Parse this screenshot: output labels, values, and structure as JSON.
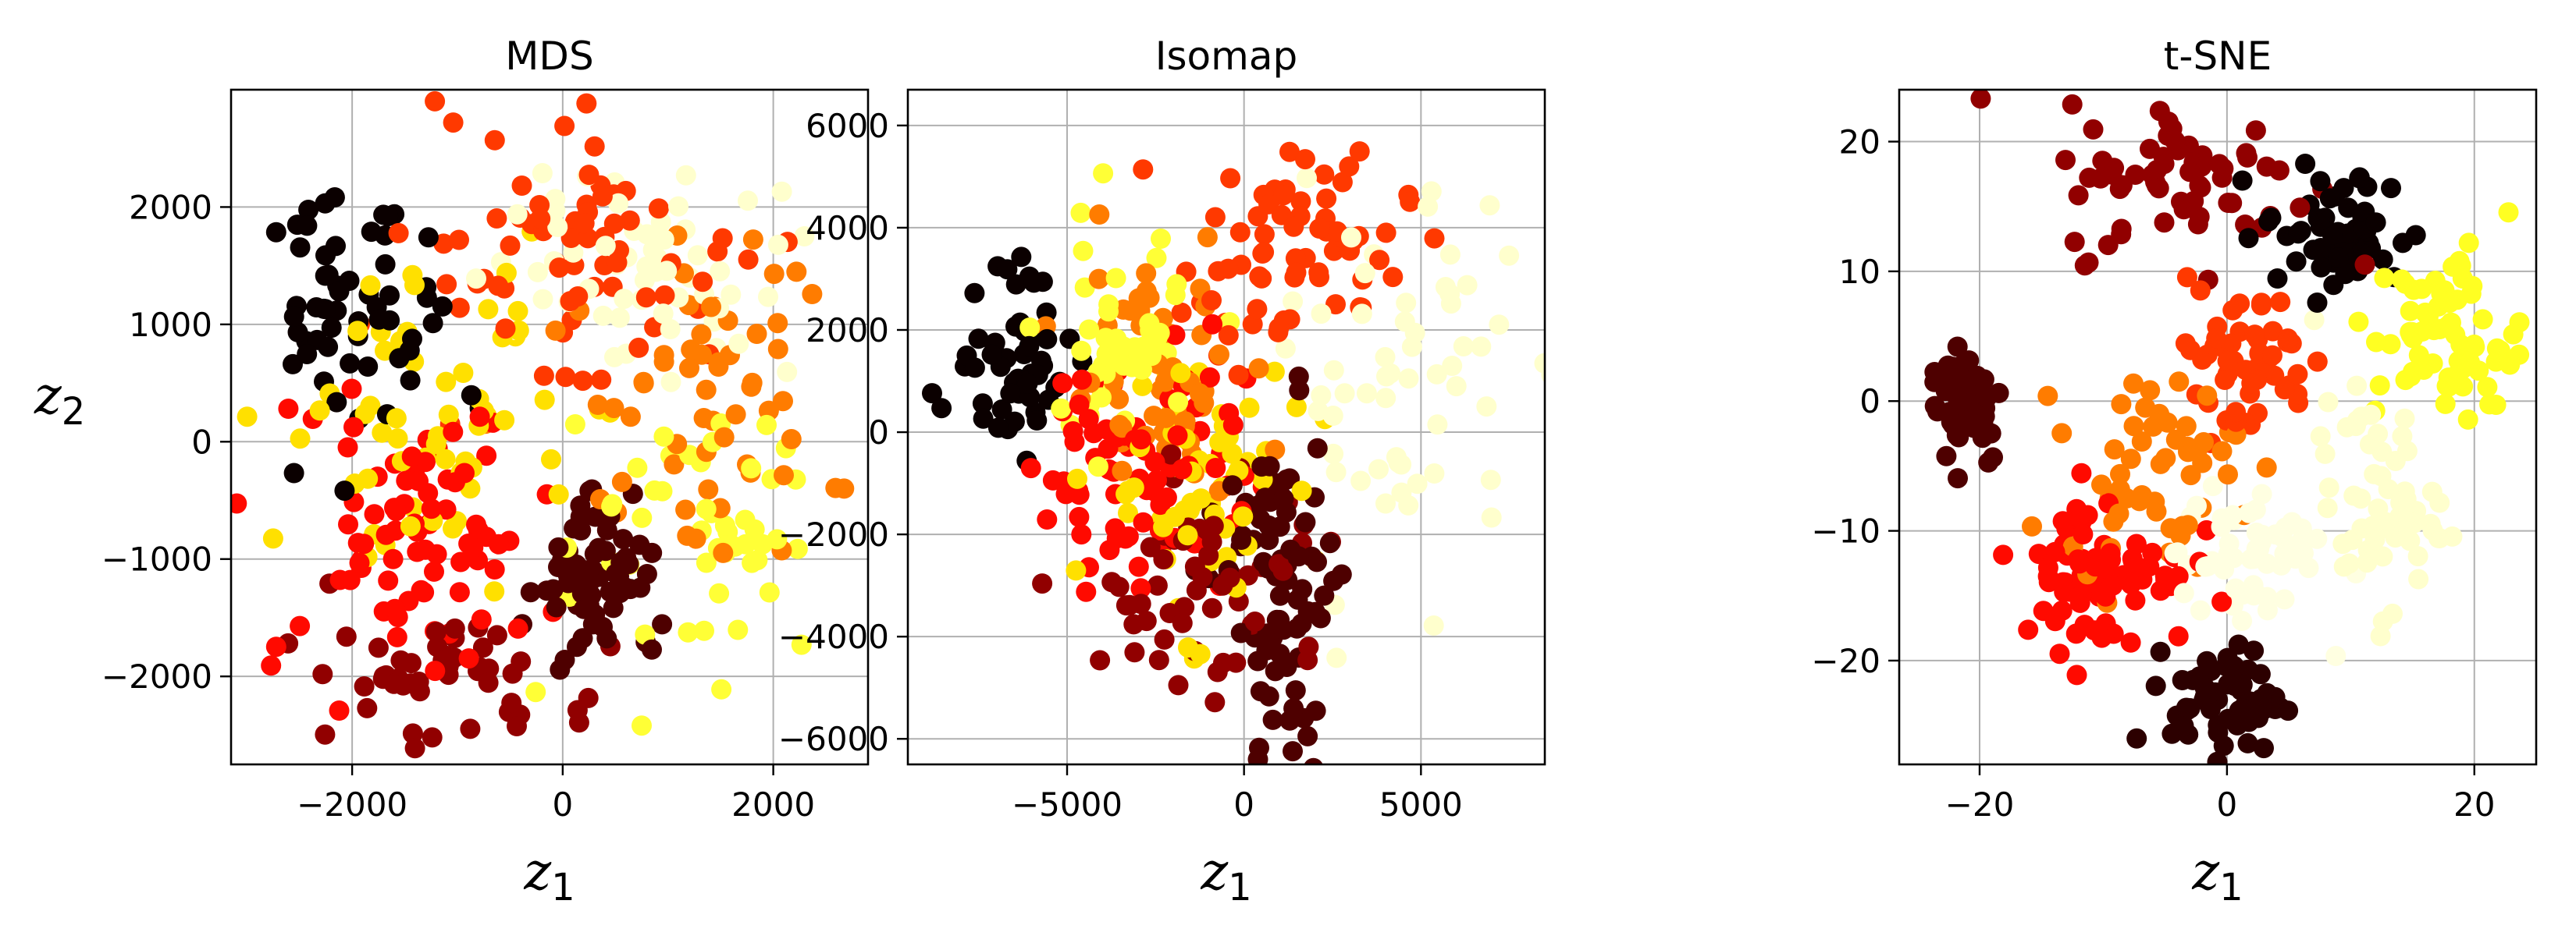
{
  "figure": {
    "colormap": "hot",
    "background": "#ffffff"
  },
  "chart_data": [
    {
      "type": "scatter",
      "title": "MDS",
      "xlabel": "z1",
      "xlabel_main": "z",
      "xlabel_sub": "1",
      "ylabel": "z2",
      "ylabel_main": "z",
      "ylabel_sub": "2",
      "xlim": [
        -3150,
        2900
      ],
      "ylim": [
        -2750,
        3000
      ],
      "xticks": [
        -2000,
        0,
        2000
      ],
      "xtick_labels": [
        "−2000",
        "0",
        "2000"
      ],
      "yticks": [
        -2000,
        -1000,
        0,
        1000,
        2000
      ],
      "ytick_labels": [
        "−2000",
        "−1000",
        "0",
        "1000",
        "2000"
      ],
      "grid": true,
      "legend": "none",
      "clusters": [
        {
          "cx": -2000,
          "cy": 1000,
          "sx": 500,
          "sy": 500,
          "n": 60,
          "c": 0.0
        },
        {
          "cx": 300,
          "cy": -1200,
          "sx": 300,
          "sy": 400,
          "n": 70,
          "c": 0.1
        },
        {
          "cx": -1100,
          "cy": -2000,
          "sx": 700,
          "sy": 300,
          "n": 50,
          "c": 0.2
        },
        {
          "cx": -1500,
          "cy": -800,
          "sx": 600,
          "sy": 500,
          "n": 80,
          "c": 0.38
        },
        {
          "cx": 0,
          "cy": 1700,
          "sx": 800,
          "sy": 600,
          "n": 70,
          "c": 0.45
        },
        {
          "cx": 1400,
          "cy": 500,
          "sx": 700,
          "sy": 700,
          "n": 60,
          "c": 0.55
        },
        {
          "cx": -1300,
          "cy": 200,
          "sx": 700,
          "sy": 700,
          "n": 60,
          "c": 0.7
        },
        {
          "cx": 1200,
          "cy": -800,
          "sx": 600,
          "sy": 600,
          "n": 50,
          "c": 0.8
        },
        {
          "cx": 800,
          "cy": 1400,
          "sx": 700,
          "sy": 600,
          "n": 60,
          "c": 0.95
        }
      ]
    },
    {
      "type": "scatter",
      "title": "Isomap",
      "xlabel": "z1",
      "xlabel_main": "z",
      "xlabel_sub": "1",
      "ylabel": "",
      "ylabel_main": "",
      "ylabel_sub": "",
      "xlim": [
        -9500,
        8500
      ],
      "ylim": [
        -6500,
        6700
      ],
      "xticks": [
        -5000,
        0,
        5000
      ],
      "xtick_labels": [
        "−5000",
        "0",
        "5000"
      ],
      "yticks": [
        -6000,
        -4000,
        -2000,
        0,
        2000,
        4000,
        6000
      ],
      "ytick_labels": [
        "−6000",
        "−4000",
        "−2000",
        "0",
        "2000",
        "4000",
        "6000"
      ],
      "grid": true,
      "legend": "none",
      "clusters": [
        {
          "cx": -6500,
          "cy": 1500,
          "sx": 1000,
          "sy": 900,
          "n": 55,
          "c": 0.0
        },
        {
          "cx": 1000,
          "cy": -3000,
          "sx": 900,
          "sy": 1500,
          "n": 80,
          "c": 0.1
        },
        {
          "cx": -500,
          "cy": -2800,
          "sx": 1600,
          "sy": 1200,
          "n": 60,
          "c": 0.2
        },
        {
          "cx": -3000,
          "cy": -500,
          "sx": 1500,
          "sy": 1300,
          "n": 80,
          "c": 0.38
        },
        {
          "cx": 1500,
          "cy": 3500,
          "sx": 1600,
          "sy": 1000,
          "n": 70,
          "c": 0.45
        },
        {
          "cx": -2500,
          "cy": 1000,
          "sx": 1300,
          "sy": 1200,
          "n": 60,
          "c": 0.55
        },
        {
          "cx": -1500,
          "cy": -1000,
          "sx": 1300,
          "sy": 1300,
          "n": 60,
          "c": 0.7
        },
        {
          "cx": -3500,
          "cy": 1800,
          "sx": 1200,
          "sy": 1100,
          "n": 50,
          "c": 0.8
        },
        {
          "cx": 4500,
          "cy": 1000,
          "sx": 1600,
          "sy": 1800,
          "n": 60,
          "c": 0.95
        }
      ]
    },
    {
      "type": "scatter",
      "title": "t-SNE",
      "xlabel": "z1",
      "xlabel_main": "z",
      "xlabel_sub": "1",
      "ylabel": "",
      "ylabel_main": "",
      "ylabel_sub": "",
      "xlim": [
        -26.5,
        25
      ],
      "ylim": [
        -28,
        24
      ],
      "xticks": [
        -20,
        0,
        20
      ],
      "xtick_labels": [
        "−20",
        "0",
        "20"
      ],
      "yticks": [
        -20,
        -10,
        0,
        10,
        20
      ],
      "ytick_labels": [
        "−20",
        "−10",
        "0",
        "10",
        "20"
      ],
      "grid": true,
      "legend": "none",
      "clusters": [
        {
          "cx": 9,
          "cy": 13,
          "sx": 3,
          "sy": 2.5,
          "n": 55,
          "c": 0.0
        },
        {
          "cx": 0,
          "cy": -23,
          "sx": 2.2,
          "sy": 2,
          "n": 70,
          "c": 0.05
        },
        {
          "cx": -21,
          "cy": 0,
          "sx": 1.5,
          "sy": 2.5,
          "n": 55,
          "c": 0.1
        },
        {
          "cx": -3,
          "cy": 17,
          "sx": 5,
          "sy": 3,
          "n": 65,
          "c": 0.2
        },
        {
          "cx": -10,
          "cy": -13,
          "sx": 3.5,
          "sy": 3,
          "n": 80,
          "c": 0.38
        },
        {
          "cx": 1,
          "cy": 3,
          "sx": 3,
          "sy": 3,
          "n": 55,
          "c": 0.45
        },
        {
          "cx": -6,
          "cy": -5,
          "sx": 3.5,
          "sy": 3.5,
          "n": 55,
          "c": 0.55
        },
        {
          "cx": 18,
          "cy": 5,
          "sx": 3,
          "sy": 3.5,
          "n": 70,
          "c": 0.78
        },
        {
          "cx": 12,
          "cy": -8,
          "sx": 2.5,
          "sy": 4,
          "n": 60,
          "c": 0.95
        },
        {
          "cx": 2,
          "cy": -12,
          "sx": 3,
          "sy": 3,
          "n": 55,
          "c": 0.97
        }
      ]
    }
  ]
}
